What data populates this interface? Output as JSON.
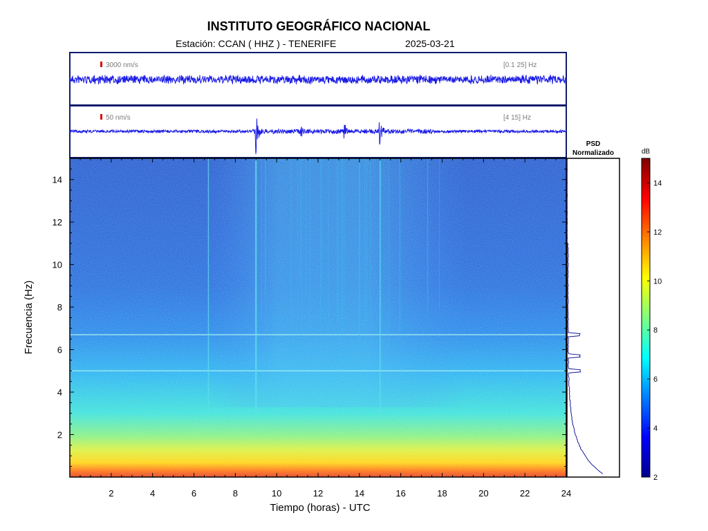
{
  "header": {
    "title": "INSTITUTO GEOGRÁFICO NACIONAL",
    "station_text": "Estación:  CCAN ( HHZ ) - TENERIFE",
    "date": "2025-03-21"
  },
  "colors": {
    "trace": "#1a1ae6",
    "frame": "#0d1a6b",
    "scale_marker": "#dd0000",
    "psd_line": "#1a1a99"
  },
  "chart_data": [
    {
      "type": "line",
      "name": "waveform-broadband",
      "scale_label": "3000 nm/s",
      "band_label": "[0.1 25] Hz",
      "xlim": [
        0,
        24
      ],
      "events": []
    },
    {
      "type": "line",
      "name": "waveform-filtered",
      "scale_label": "50 nm/s",
      "band_label": "[4 15] Hz",
      "xlim": [
        0,
        24
      ],
      "events": [
        {
          "t": 9.0,
          "amp": 1.0
        },
        {
          "t": 13.3,
          "amp": 0.3
        },
        {
          "t": 15.0,
          "amp": 0.55
        },
        {
          "t": 11.2,
          "amp": 0.2
        }
      ]
    },
    {
      "type": "heatmap",
      "name": "spectrogram",
      "xlabel": "Tiempo (horas) - UTC",
      "ylabel": "Frecuencia  (Hz)",
      "xlim": [
        0,
        24
      ],
      "ylim": [
        0,
        15
      ],
      "x_ticks": [
        2,
        4,
        6,
        8,
        10,
        12,
        14,
        16,
        18,
        20,
        22,
        24
      ],
      "y_ticks": [
        2,
        4,
        6,
        8,
        10,
        12,
        14
      ],
      "colormap": "jet",
      "clim": [
        2,
        15
      ],
      "tonal_lines_hz": [
        6.7,
        5.0
      ],
      "vertical_events_h": [
        6.7,
        9.0,
        15.0
      ]
    },
    {
      "type": "line",
      "name": "psd-normalizado",
      "title_line1": "PSD",
      "title_line2": "Normalizado",
      "peaks_hz": [
        6.7,
        5.0,
        5.7
      ],
      "ylim": [
        0,
        15
      ]
    },
    {
      "type": "colorbar",
      "name": "colorbar",
      "unit": "dB",
      "min": 2,
      "max": 15,
      "ticks": [
        2,
        4,
        6,
        8,
        10,
        12,
        14
      ]
    }
  ]
}
